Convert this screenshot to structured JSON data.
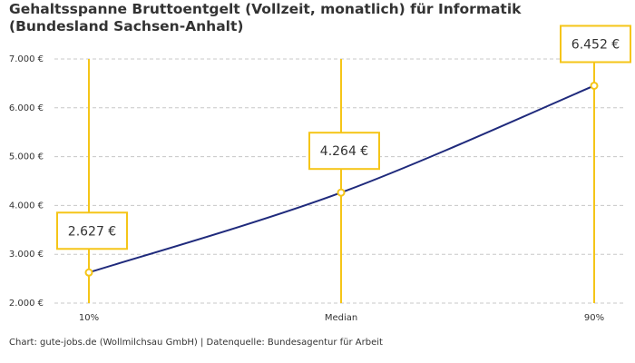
{
  "chart_data": {
    "type": "line",
    "title": "Gehaltsspanne Bruttoentgelt (Vollzeit, monatlich) für Informatik (Bundesland Sachsen-Anhalt)",
    "categories": [
      "10%",
      "Median",
      "90%"
    ],
    "series": [
      {
        "name": "Bruttoentgelt",
        "color": "#1f2a7c",
        "values": [
          2627,
          4264,
          6452
        ],
        "value_labels": [
          "2.627 €",
          "4.264 €",
          "6.452 €"
        ]
      }
    ],
    "marker_color": "#f5c518",
    "ylim": [
      2000,
      7000
    ],
    "yticks": [
      {
        "value": 2000,
        "label": "2.000 €"
      },
      {
        "value": 3000,
        "label": "3.000 €"
      },
      {
        "value": 4000,
        "label": "4.000 €"
      },
      {
        "value": 5000,
        "label": "5.000 €"
      },
      {
        "value": 6000,
        "label": "6.000 €"
      },
      {
        "value": 7000,
        "label": "7.000 €"
      }
    ],
    "grid": true,
    "source": "Chart: gute-jobs.de (Wollmilchsau GmbH) | Datenquelle: Bundesagentur für Arbeit"
  }
}
